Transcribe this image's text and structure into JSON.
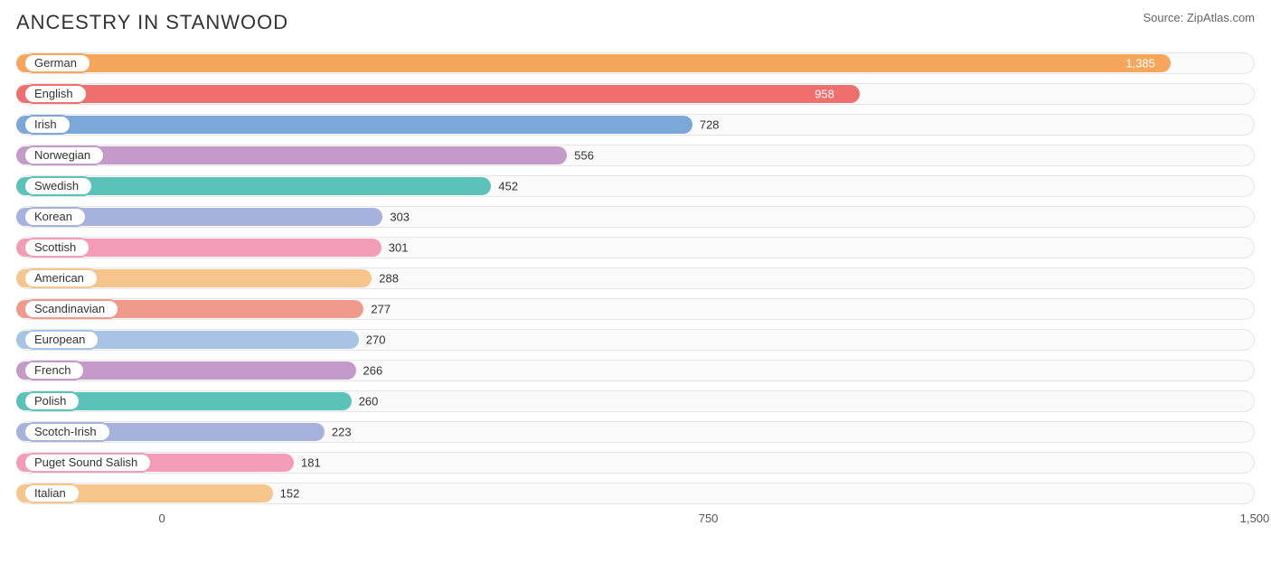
{
  "title": "ANCESTRY IN STANWOOD",
  "source": "Source: ZipAtlas.com",
  "chart": {
    "type": "bar",
    "x_min": -200,
    "x_max": 1500,
    "track_bg": "#fafafa",
    "track_border": "#e5e5e5",
    "value_label_threshold": 900,
    "label_fontsize": 13,
    "title_fontsize": 22,
    "palette_cycle": [
      "#f5a65b",
      "#ef6e6e",
      "#7ba7d9",
      "#c49ac8",
      "#5ac2b8",
      "#a6b1dd",
      "#f29cb7"
    ],
    "ticks": [
      {
        "value": 0,
        "label": "0"
      },
      {
        "value": 750,
        "label": "750"
      },
      {
        "value": 1500,
        "label": "1,500"
      }
    ],
    "series": [
      {
        "label": "German",
        "value": 1385,
        "display": "1,385",
        "color": "#f5a65b"
      },
      {
        "label": "English",
        "value": 958,
        "display": "958",
        "color": "#ef6e6e"
      },
      {
        "label": "Irish",
        "value": 728,
        "display": "728",
        "color": "#7ba7d9"
      },
      {
        "label": "Norwegian",
        "value": 556,
        "display": "556",
        "color": "#c49ac8"
      },
      {
        "label": "Swedish",
        "value": 452,
        "display": "452",
        "color": "#5ac2b8"
      },
      {
        "label": "Korean",
        "value": 303,
        "display": "303",
        "color": "#a6b1dd"
      },
      {
        "label": "Scottish",
        "value": 301,
        "display": "301",
        "color": "#f29cb7"
      },
      {
        "label": "American",
        "value": 288,
        "display": "288",
        "color": "#f5c58b"
      },
      {
        "label": "Scandinavian",
        "value": 277,
        "display": "277",
        "color": "#f09a8e"
      },
      {
        "label": "European",
        "value": 270,
        "display": "270",
        "color": "#a7c4e2"
      },
      {
        "label": "French",
        "value": 266,
        "display": "266",
        "color": "#c49ac8"
      },
      {
        "label": "Polish",
        "value": 260,
        "display": "260",
        "color": "#5ac2b8"
      },
      {
        "label": "Scotch-Irish",
        "value": 223,
        "display": "223",
        "color": "#a6b1dd"
      },
      {
        "label": "Puget Sound Salish",
        "value": 181,
        "display": "181",
        "color": "#f29cb7"
      },
      {
        "label": "Italian",
        "value": 152,
        "display": "152",
        "color": "#f5c58b"
      }
    ]
  }
}
